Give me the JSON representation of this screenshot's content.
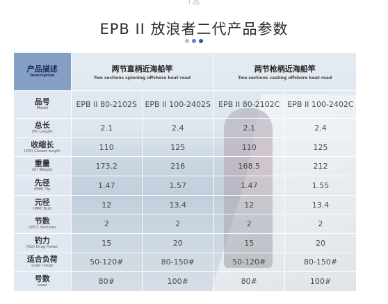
{
  "top_fragment": "Ⅰ 品",
  "title": "EPB II 放浪者二代产品参数",
  "header": {
    "row_label": {
      "cn": "产品描述",
      "en": "Description"
    },
    "groups": [
      {
        "cn": "两节直柄近海船竿",
        "en": "Two sections spinning offshore boat road"
      },
      {
        "cn": "两节枪柄近海船竿",
        "en": "Two sections casting offshore boat road"
      }
    ]
  },
  "model_row": {
    "label": {
      "cn": "品号",
      "en": "Model"
    },
    "models": [
      "EPB II 80-2102S",
      "EPB II 100-2402S",
      "EPB II 80-2102C",
      "EPB II 100-2402C"
    ]
  },
  "rows": [
    {
      "cn": "总长",
      "en": "(M) Length",
      "values": [
        "2.1",
        "2.4",
        "2.1",
        "2.4"
      ]
    },
    {
      "cn": "收缩长",
      "en": "(CM) Closed length",
      "values": [
        "110",
        "125",
        "110",
        "125"
      ]
    },
    {
      "cn": "重量",
      "en": "(G) Weight",
      "values": [
        "173.2",
        "216",
        "168.5",
        "212"
      ]
    },
    {
      "cn": "先径",
      "en": "(MM) Tip",
      "values": [
        "1.47",
        "1.57",
        "1.47",
        "1.55"
      ]
    },
    {
      "cn": "元径",
      "en": "(MM) Butt",
      "values": [
        "12",
        "13.4",
        "12",
        "13.4"
      ]
    },
    {
      "cn": "节数",
      "en": "(SEC) Sections",
      "values": [
        "2",
        "2",
        "2",
        "2"
      ]
    },
    {
      "cn": "钓力",
      "en": "(KG) Drag Power",
      "values": [
        "15",
        "20",
        "15",
        "20"
      ]
    },
    {
      "cn": "适合负荷",
      "en": "Load range",
      "values": [
        "50-120#",
        "80-150#",
        "50-120#",
        "80-150#"
      ]
    },
    {
      "cn": "号数",
      "en": "Load",
      "values": [
        "80#",
        "100#",
        "80#",
        "100#"
      ]
    }
  ]
}
